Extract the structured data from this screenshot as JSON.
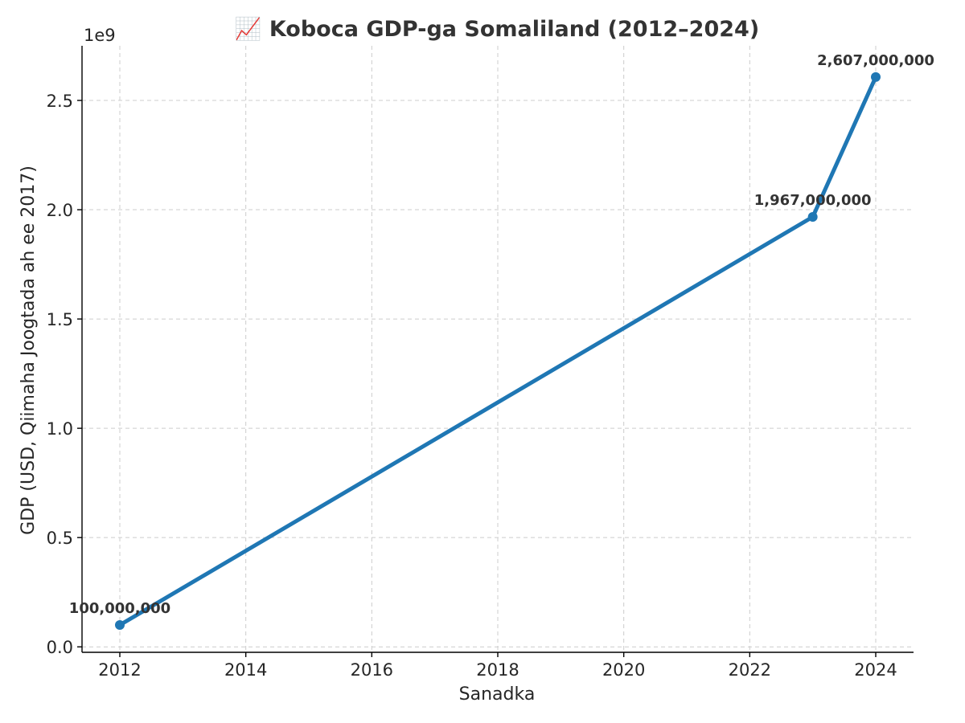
{
  "chart_data": {
    "type": "line",
    "title": "📈 Koboca GDP-ga Somaliland (2012–2024)",
    "xlabel": "Sanadka",
    "ylabel": "GDP (USD, Qiimaha Joogtada ah ee 2017)",
    "y_offset_label": "1e9",
    "xlim": [
      2011.4,
      2024.6
    ],
    "ylim": [
      -0.025,
      2.75
    ],
    "x_ticks": [
      2012,
      2014,
      2016,
      2018,
      2020,
      2022,
      2024
    ],
    "x_tick_labels": [
      "2012",
      "2014",
      "2016",
      "2018",
      "2020",
      "2022",
      "2024"
    ],
    "y_ticks": [
      0.0,
      0.5,
      1.0,
      1.5,
      2.0,
      2.5
    ],
    "y_tick_labels": [
      "0.0",
      "0.5",
      "1.0",
      "1.5",
      "2.0",
      "2.5"
    ],
    "grid": true,
    "series": [
      {
        "name": "GDP",
        "color": "#1f77b4",
        "x": [
          2012,
          2023,
          2024
        ],
        "y": [
          0.1,
          1.967,
          2.607
        ],
        "labels": [
          "100,000,000",
          "1,967,000,000",
          "2,607,000,000"
        ]
      }
    ]
  }
}
